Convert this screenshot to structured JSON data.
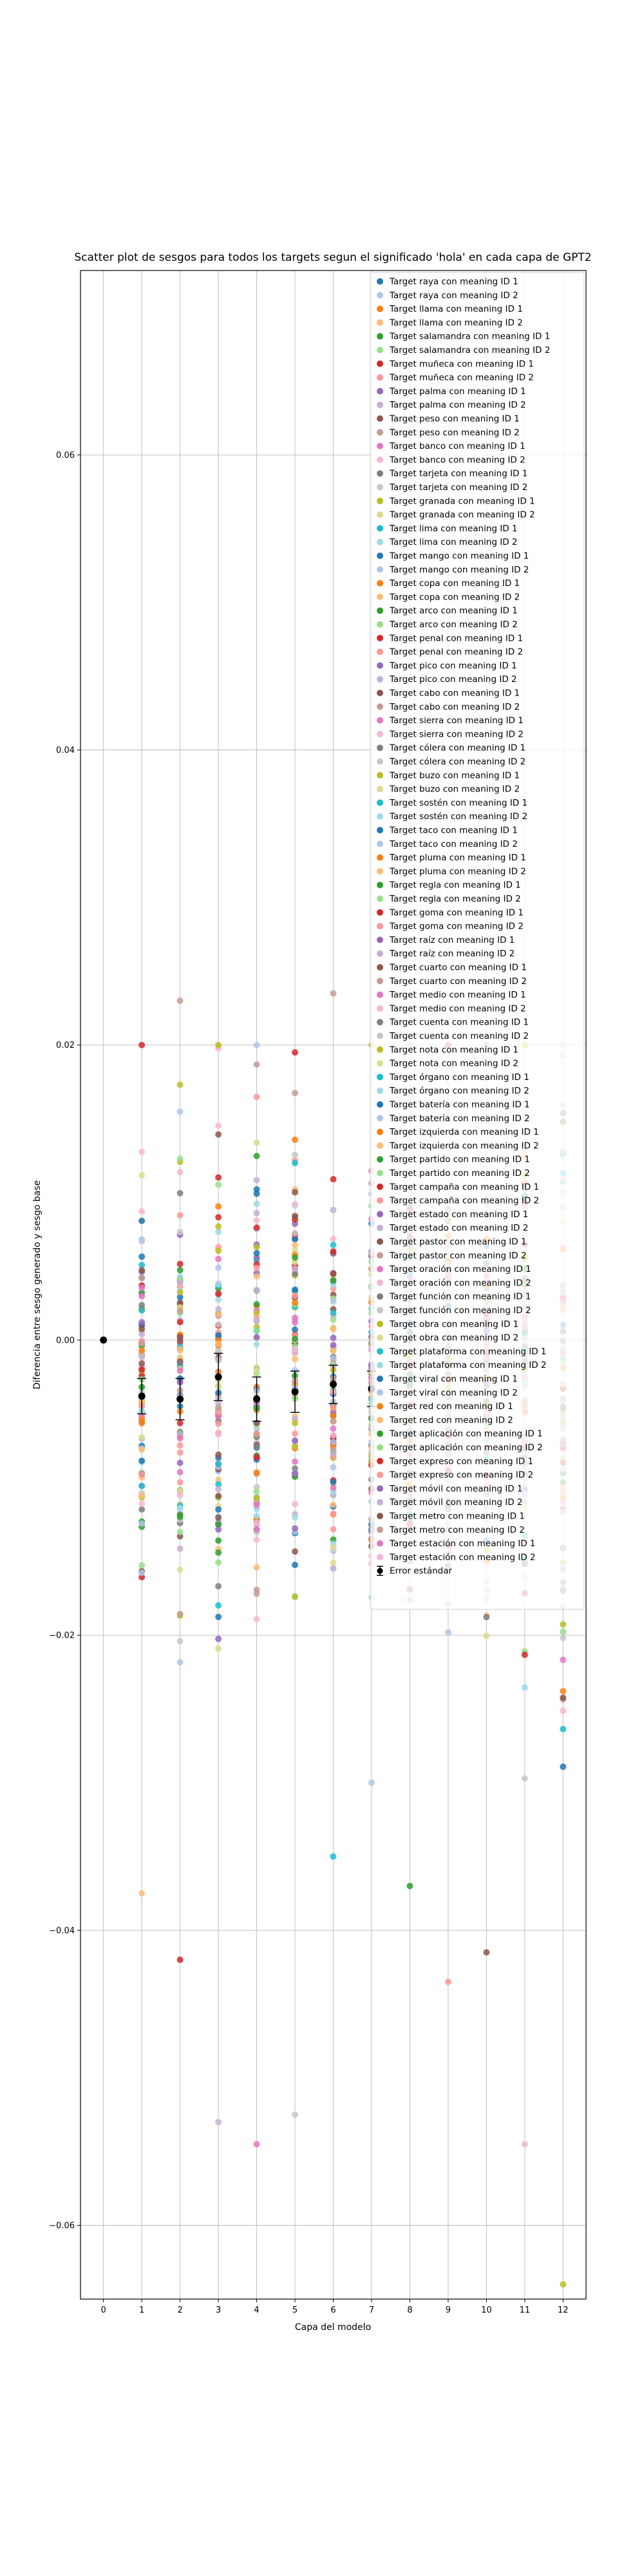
{
  "chart_data": {
    "type": "scatter",
    "title": "Scatter plot de sesgos para todos los targets segun el significado 'hola' en cada capa de GPT2",
    "xlabel": "Capa del modelo",
    "ylabel": "Diferencia entre sesgo generado y sesgo base",
    "x_ticks": [
      "0",
      "1",
      "2",
      "3",
      "4",
      "5",
      "6",
      "7",
      "8",
      "9",
      "10",
      "11",
      "12"
    ],
    "y_ticks": [
      {
        "value": -0.06,
        "label": "−0.06"
      },
      {
        "value": -0.04,
        "label": "−0.04"
      },
      {
        "value": -0.02,
        "label": "−0.02"
      },
      {
        "value": 0.0,
        "label": "0.00"
      },
      {
        "value": 0.02,
        "label": "0.02"
      },
      {
        "value": 0.04,
        "label": "0.04"
      },
      {
        "value": 0.06,
        "label": "0.06"
      }
    ],
    "xlim": [
      -0.6,
      12.6
    ],
    "ylim": [
      -0.065,
      0.0725
    ],
    "grid": true,
    "legend_position": "top-right",
    "palette": [
      "#1f77b4",
      "#aec7e8",
      "#ff7f0e",
      "#ffbb78",
      "#2ca02c",
      "#98df8a",
      "#d62728",
      "#ff9896",
      "#9467bd",
      "#c5b0d5",
      "#8c564b",
      "#c49c94",
      "#e377c2",
      "#f7b6d2",
      "#7f7f7f",
      "#c7c7c7",
      "#bcbd22",
      "#dbdb8d",
      "#17becf",
      "#9edae5"
    ],
    "series_names": [
      "Target raya con meaning ID 1",
      "Target raya con meaning ID 2",
      "Target llama con meaning ID 1",
      "Target llama con meaning ID 2",
      "Target salamandra con meaning ID 1",
      "Target salamandra con meaning ID 2",
      "Target muñeca con meaning ID 1",
      "Target muñeca con meaning ID 2",
      "Target palma con meaning ID 1",
      "Target palma con meaning ID 2",
      "Target peso con meaning ID 1",
      "Target peso con meaning ID 2",
      "Target banco con meaning ID 1",
      "Target banco con meaning ID 2",
      "Target tarjeta con meaning ID 1",
      "Target tarjeta con meaning ID 2",
      "Target granada con meaning ID 1",
      "Target granada con meaning ID 2",
      "Target lima con meaning ID 1",
      "Target lima con meaning ID 2",
      "Target mango con meaning ID 1",
      "Target mango con meaning ID 2",
      "Target copa con meaning ID 1",
      "Target copa con meaning ID 2",
      "Target arco con meaning ID 1",
      "Target arco con meaning ID 2",
      "Target penal con meaning ID 1",
      "Target penal con meaning ID 2",
      "Target pico con meaning ID 1",
      "Target pico con meaning ID 2",
      "Target cabo con meaning ID 1",
      "Target cabo con meaning ID 2",
      "Target sierra con meaning ID 1",
      "Target sierra con meaning ID 2",
      "Target cólera con meaning ID 1",
      "Target cólera con meaning ID 2",
      "Target buzo con meaning ID 1",
      "Target buzo con meaning ID 2",
      "Target sostén con meaning ID 1",
      "Target sostén con meaning ID 2",
      "Target taco con meaning ID 1",
      "Target taco con meaning ID 2",
      "Target pluma con meaning ID 1",
      "Target pluma con meaning ID 2",
      "Target regla con meaning ID 1",
      "Target regla con meaning ID 2",
      "Target goma con meaning ID 1",
      "Target goma con meaning ID 2",
      "Target raíz con meaning ID 1",
      "Target raíz con meaning ID 2",
      "Target cuarto con meaning ID 1",
      "Target cuarto con meaning ID 2",
      "Target medio con meaning ID 1",
      "Target medio con meaning ID 2",
      "Target cuenta con meaning ID 1",
      "Target cuenta con meaning ID 2",
      "Target nota con meaning ID 1",
      "Target nota con meaning ID 2",
      "Target órgano con meaning ID 1",
      "Target órgano con meaning ID 2",
      "Target batería con meaning ID 1",
      "Target batería con meaning ID 2",
      "Target izquierda con meaning ID 1",
      "Target izquierda con meaning ID 2",
      "Target partido con meaning ID 1",
      "Target partido con meaning ID 2",
      "Target campaña con meaning ID 1",
      "Target campaña con meaning ID 2",
      "Target estado con meaning ID 1",
      "Target estado con meaning ID 2",
      "Target pastor con meaning ID 1",
      "Target pastor con meaning ID 2",
      "Target oración con meaning ID 1",
      "Target oración con meaning ID 2",
      "Target función con meaning ID 1",
      "Target función con meaning ID 2",
      "Target obra con meaning ID 1",
      "Target obra con meaning ID 2",
      "Target plataforma con meaning ID 1",
      "Target plataforma con meaning ID 2",
      "Target viral con meaning ID 1",
      "Target viral con meaning ID 2",
      "Target red con meaning ID 1",
      "Target red con meaning ID 2",
      "Target aplicación con meaning ID 1",
      "Target aplicación con meaning ID 2",
      "Target expreso con meaning ID 1",
      "Target expreso con meaning ID 2",
      "Target móvil con meaning ID 1",
      "Target móvil con meaning ID 2",
      "Target metro con meaning ID 1",
      "Target metro con meaning ID 2",
      "Target estación con meaning ID 1",
      "Target estación con meaning ID 2"
    ],
    "error_series": {
      "name": "Error estándar",
      "x": [
        0,
        1,
        2,
        3,
        4,
        5,
        6,
        7
      ],
      "y": [
        0.0,
        -0.0038,
        -0.004,
        -0.0025,
        -0.004,
        -0.0035,
        -0.003,
        -0.0033
      ],
      "err": [
        0.0,
        0.0012,
        0.0014,
        0.0016,
        0.0015,
        0.0014,
        0.0013,
        0.0012
      ]
    },
    "layer_ranges": [
      {
        "x": 1,
        "min": -0.0375,
        "max": 0.02
      },
      {
        "x": 2,
        "min": -0.042,
        "max": 0.023
      },
      {
        "x": 3,
        "min": -0.053,
        "max": 0.02
      },
      {
        "x": 4,
        "min": -0.0545,
        "max": 0.02
      },
      {
        "x": 5,
        "min": -0.0525,
        "max": 0.0195
      },
      {
        "x": 6,
        "min": -0.035,
        "max": 0.0235
      },
      {
        "x": 7,
        "min": -0.03,
        "max": 0.02
      },
      {
        "x": 8,
        "min": -0.037,
        "max": 0.02
      },
      {
        "x": 9,
        "min": -0.0435,
        "max": 0.02
      },
      {
        "x": 10,
        "min": -0.0415,
        "max": 0.02
      },
      {
        "x": 11,
        "min": -0.0545,
        "max": 0.02
      },
      {
        "x": 12,
        "min": -0.064,
        "max": 0.02
      }
    ]
  }
}
